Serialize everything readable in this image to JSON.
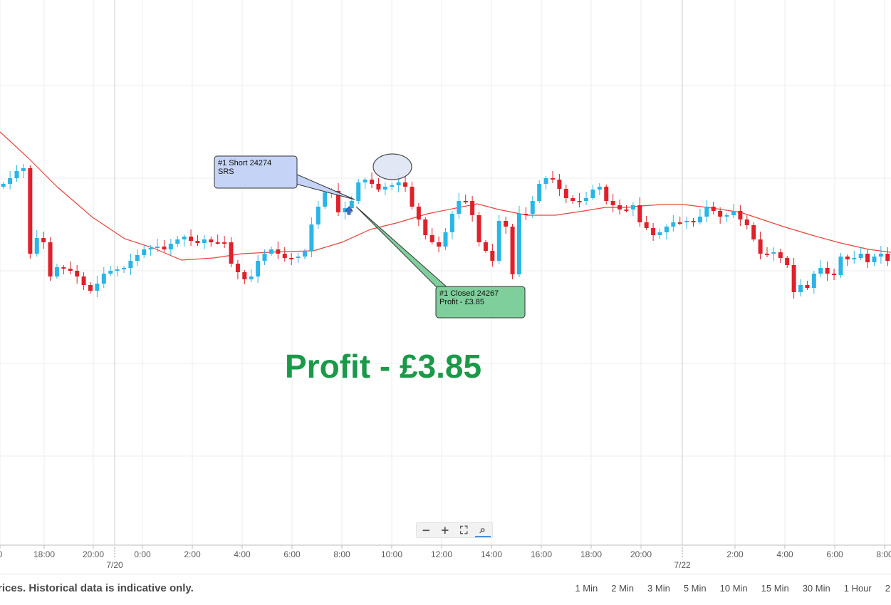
{
  "chart": {
    "x_ticks": [
      "0",
      "18:00",
      "20:00",
      "0:00",
      "2:00",
      "4:00",
      "6:00",
      "8:00",
      "10:00",
      "12:00",
      "14:00",
      "16:00",
      "18:00",
      "20:00",
      "2:00",
      "4:00",
      "6:00",
      "8:00"
    ],
    "date_labels": [
      "7/20",
      "7/22"
    ],
    "colors": {
      "bull": "#29b6e6",
      "bear": "#e0202a",
      "moving_average": "#e8443a",
      "grid": "#ececec",
      "open_callout": "#c4d3f6",
      "close_callout": "#7fcf9c",
      "profit_text": "#1a9a48",
      "highlight_circle": "#dde3f5"
    }
  },
  "annotations": {
    "open_trade": {
      "line1": "#1 Short 24274",
      "line2": "SRS",
      "direction_icon": "arrow-up-icon"
    },
    "close_trade": {
      "line1": "#1 Closed 24267",
      "line2": "Profit - £3.85"
    },
    "profit_headline": "Profit - £3.85"
  },
  "zoom_controls": {
    "zoom_out": "−",
    "zoom_in": "+",
    "fit": "⛶",
    "magnifier": "⌕"
  },
  "footer": {
    "disclaimer": "rices. Historical data is indicative only.",
    "timeframes": [
      "1 Min",
      "2 Min",
      "3 Min",
      "5 Min",
      "10 Min",
      "15 Min",
      "30 Min",
      "1 Hour",
      "2"
    ]
  }
}
